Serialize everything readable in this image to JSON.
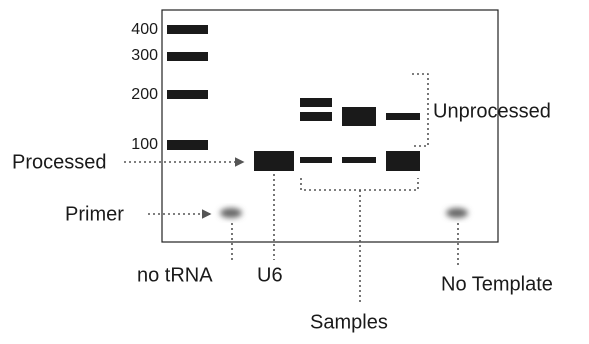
{
  "ladder": {
    "labels": [
      400,
      300,
      200,
      100
    ]
  },
  "annotations": {
    "processed": "Processed",
    "primer": "Primer",
    "unprocessed": "Unprocessed"
  },
  "lanes": {
    "no_trna": "no tRNA",
    "u6": "U6",
    "samples": "Samples",
    "no_template": "No Template"
  }
}
